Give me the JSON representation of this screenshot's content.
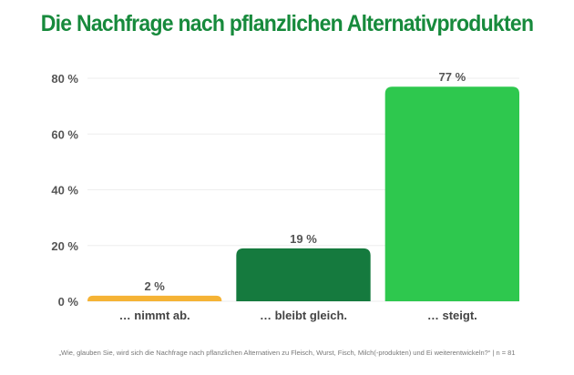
{
  "chart_data": {
    "type": "bar",
    "title": "Die Nachfrage nach pflanzlichen Alternativprodukten",
    "categories": [
      "… nimmt ab.",
      "… bleibt gleich.",
      "… steigt."
    ],
    "values": [
      2,
      19,
      77
    ],
    "data_labels": [
      "2 %",
      "19 %",
      "77 %"
    ],
    "colors": [
      "#f5b335",
      "#157a3e",
      "#2ec84e"
    ],
    "ylim": [
      0,
      80
    ],
    "yticks": [
      0,
      20,
      40,
      60,
      80
    ],
    "ytick_labels": [
      "0 %",
      "20 %",
      "40 %",
      "60 %",
      "80 %"
    ],
    "grid": true,
    "xlabel": "",
    "ylabel": ""
  },
  "footnote": "„Wie, glauben Sie, wird sich die Nachfrage nach pflanzlichen Alternativen zu Fleisch, Wurst, Fisch, Milch(-produkten) und Ei weiterentwickeln?“ | n = 81"
}
